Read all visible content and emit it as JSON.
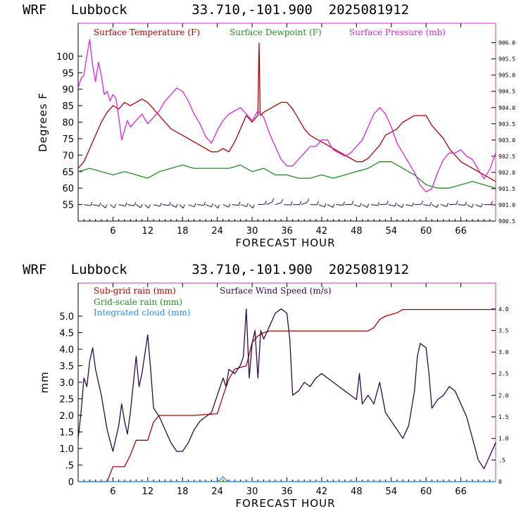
{
  "header_top": {
    "model": "WRF",
    "station": "Lubbock",
    "coords": "33.710,-101.900",
    "run": "2025081912"
  },
  "header_bottom": {
    "model": "WRF",
    "station": "Lubbock",
    "coords": "33.710,-101.900",
    "run": "2025081912"
  },
  "colors": {
    "temperature": "#b00000",
    "dewpoint": "#228b22",
    "pressure": "#e020e0",
    "subgrid_rain": "#b00000",
    "gridscale_rain": "#228b22",
    "cloud": "#1e90ff",
    "wind": "#2a0a4a",
    "frame": "#cc33cc"
  },
  "chart_data": [
    {
      "type": "line",
      "xlabel": "FORECAST HOUR",
      "ylabel": "Degrees F",
      "xlim": [
        0,
        72
      ],
      "ylim": [
        50,
        110
      ],
      "y2lim": [
        900.5,
        906.6
      ],
      "xticks": [
        "6",
        "12",
        "18",
        "24",
        "30",
        "36",
        "42",
        "48",
        "54",
        "60",
        "66"
      ],
      "yticks": [
        "55",
        "60",
        "65",
        "70",
        "75",
        "80",
        "85",
        "90",
        "95",
        "100"
      ],
      "y2ticks": [
        "900.5",
        "901.0",
        "901.5",
        "902.0",
        "902.5",
        "903.0",
        "903.5",
        "904.0",
        "904.5",
        "905.0",
        "905.5",
        "906.0"
      ],
      "legend": [
        "Surface Temperature (F)",
        "Surface Dewpoint (F)",
        "Surface Pressure (mb)"
      ],
      "series": [
        {
          "name": "Surface Temperature (F)",
          "axis": "left",
          "x": [
            0,
            1,
            2,
            3,
            4,
            5,
            6,
            7,
            8,
            9,
            10,
            11,
            12,
            13,
            14,
            15,
            16,
            17,
            18,
            19,
            20,
            21,
            22,
            23,
            24,
            25,
            26,
            27,
            28,
            29,
            30,
            31,
            31.2,
            31.4,
            32,
            33,
            34,
            35,
            36,
            37,
            38,
            39,
            40,
            41,
            42,
            43,
            44,
            45,
            46,
            47,
            48,
            49,
            50,
            51,
            52,
            53,
            54,
            55,
            56,
            57,
            58,
            59,
            60,
            61,
            62,
            63,
            64,
            65,
            66,
            67,
            68,
            69,
            70,
            71,
            72
          ],
          "values": [
            66,
            68,
            72,
            76,
            80,
            83,
            85,
            84,
            86,
            85,
            86,
            87,
            86,
            84,
            82,
            80,
            78,
            77,
            76,
            75,
            74,
            73,
            72,
            71,
            71,
            72,
            71,
            74,
            78,
            82,
            80,
            82,
            104,
            82,
            83,
            84,
            85,
            86,
            86,
            84,
            81,
            78,
            76,
            75,
            74,
            73,
            72,
            71,
            70,
            69,
            68,
            68,
            69,
            71,
            73,
            76,
            77,
            78,
            80,
            81,
            82,
            82,
            82,
            79,
            77,
            75,
            72,
            70,
            68,
            67,
            66,
            65,
            64,
            63,
            62
          ]
        },
        {
          "name": "Surface Dewpoint (F)",
          "axis": "left",
          "x": [
            0,
            2,
            4,
            6,
            8,
            10,
            12,
            14,
            16,
            18,
            20,
            22,
            24,
            26,
            28,
            30,
            32,
            34,
            36,
            38,
            40,
            42,
            44,
            46,
            48,
            50,
            52,
            54,
            56,
            58,
            60,
            62,
            64,
            66,
            68,
            70,
            72
          ],
          "values": [
            65,
            66,
            65,
            64,
            65,
            64,
            63,
            65,
            66,
            67,
            66,
            66,
            66,
            66,
            67,
            65,
            66,
            64,
            64,
            63,
            63,
            64,
            63,
            64,
            65,
            66,
            68,
            68,
            66,
            64,
            61,
            60,
            60,
            61,
            62,
            61,
            60
          ]
        },
        {
          "name": "Surface Pressure (mb)",
          "axis": "right",
          "x": [
            0,
            0.5,
            1,
            1.5,
            2,
            2.5,
            3,
            3.5,
            4,
            4.5,
            5,
            5.5,
            6,
            6.5,
            7,
            7.5,
            8,
            8.5,
            9,
            10,
            11,
            12,
            13,
            14,
            15,
            16,
            17,
            18,
            19,
            20,
            21,
            22,
            23,
            24,
            25,
            26,
            27,
            28,
            29,
            30,
            31,
            32,
            33,
            34,
            35,
            36,
            37,
            38,
            39,
            40,
            41,
            42,
            43,
            44,
            45,
            46,
            47,
            48,
            49,
            50,
            51,
            52,
            53,
            54,
            55,
            56,
            57,
            58,
            59,
            60,
            61,
            62,
            63,
            64,
            65,
            66,
            67,
            68,
            69,
            70,
            71,
            72
          ],
          "values": [
            904.6,
            904.9,
            905.0,
            905.6,
            906.1,
            905.3,
            904.8,
            905.4,
            905.0,
            904.4,
            904.5,
            904.2,
            904.4,
            904.3,
            903.7,
            903.0,
            903.3,
            903.6,
            903.4,
            903.6,
            903.8,
            903.5,
            903.7,
            903.9,
            904.2,
            904.4,
            904.6,
            904.5,
            904.2,
            903.8,
            903.5,
            903.1,
            902.9,
            903.3,
            903.6,
            903.8,
            903.9,
            904.0,
            903.8,
            903.6,
            903.9,
            903.7,
            903.2,
            902.8,
            902.4,
            902.2,
            902.2,
            902.4,
            902.6,
            902.8,
            902.8,
            903.0,
            903.0,
            902.7,
            902.6,
            902.5,
            902.6,
            902.8,
            903.0,
            903.4,
            903.8,
            904.0,
            903.8,
            903.4,
            902.9,
            902.6,
            902.3,
            902.0,
            901.6,
            901.4,
            901.5,
            902.0,
            902.4,
            902.6,
            902.6,
            902.7,
            902.5,
            902.4,
            902.1,
            901.8,
            902.1,
            902.6
          ]
        }
      ]
    },
    {
      "type": "line",
      "xlabel": "FORECAST HOUR",
      "ylabel": "mm",
      "xlim": [
        0,
        72
      ],
      "ylim": [
        0,
        6.0
      ],
      "y2lim": [
        0,
        4.6
      ],
      "xticks": [
        "6",
        "12",
        "18",
        "24",
        "30",
        "36",
        "42",
        "48",
        "54",
        "60",
        "66"
      ],
      "yticks": [
        "0",
        ".5",
        "1.0",
        "1.5",
        "2.0",
        "2.5",
        "3.0",
        "3.5",
        "4.0",
        "4.5",
        "5.0"
      ],
      "y2ticks": [
        "0",
        ".5",
        "1.0",
        "1.5",
        "2.0",
        "2.5",
        "3.0",
        "3.5",
        "4.0"
      ],
      "legend": [
        "Sub-grid rain (mm)",
        "Grid-scale rain (mm)",
        "Integrated cloud (mm)",
        "Surface Wind Speed (m/s)"
      ],
      "series": [
        {
          "name": "Sub-grid rain (mm)",
          "axis": "left",
          "x": [
            0,
            5,
            6,
            8,
            9,
            10,
            11,
            12,
            13,
            14,
            15,
            16,
            20,
            24,
            25,
            26,
            27,
            28,
            29,
            30,
            31,
            32,
            33,
            34,
            40,
            50,
            51,
            52,
            53,
            54,
            55,
            56,
            57,
            60,
            72
          ],
          "values": [
            0,
            0,
            0.45,
            0.45,
            0.8,
            1.25,
            1.25,
            1.25,
            1.8,
            2.0,
            2.0,
            2.0,
            2.0,
            2.05,
            2.6,
            3.1,
            3.4,
            3.45,
            3.5,
            4.2,
            4.4,
            4.5,
            4.55,
            4.55,
            4.55,
            4.55,
            4.65,
            4.9,
            5.0,
            5.05,
            5.1,
            5.2,
            5.2,
            5.2,
            5.2
          ]
        },
        {
          "name": "Grid-scale rain (mm)",
          "axis": "left",
          "x": [
            0,
            72
          ],
          "values": [
            0,
            0
          ]
        },
        {
          "name": "Integrated cloud (mm)",
          "axis": "left",
          "x": [
            0,
            24,
            24.5,
            25,
            25.5,
            26,
            72
          ],
          "values": [
            0,
            0,
            0.05,
            0.15,
            0.05,
            0,
            0
          ]
        },
        {
          "name": "Surface Wind Speed (m/s)",
          "axis": "right",
          "x": [
            0,
            0.5,
            1,
            1.5,
            2,
            2.5,
            3,
            4,
            5,
            6,
            7,
            7.5,
            8,
            8.5,
            9,
            10,
            10.5,
            11,
            12,
            12.5,
            13,
            14,
            15,
            16,
            17,
            18,
            19,
            20,
            21,
            22,
            23,
            24,
            24.5,
            25,
            25.5,
            26,
            27,
            28,
            28.5,
            29,
            29.5,
            30,
            30.5,
            31,
            31.5,
            32,
            33,
            34,
            35,
            36,
            36.5,
            37,
            38,
            39,
            40,
            41,
            42,
            43,
            44,
            45,
            46,
            47,
            48,
            48.5,
            49,
            50,
            51,
            52,
            53,
            54,
            55,
            56,
            57,
            58,
            58.5,
            59,
            60,
            60.5,
            61,
            62,
            63,
            64,
            65,
            66,
            67,
            68,
            69,
            70,
            71,
            72
          ],
          "values": [
            1.0,
            1.6,
            2.4,
            2.2,
            2.8,
            3.1,
            2.6,
            2.0,
            1.2,
            0.7,
            1.3,
            1.8,
            1.4,
            1.1,
            1.6,
            2.9,
            2.2,
            2.5,
            3.4,
            2.6,
            1.7,
            1.5,
            1.2,
            0.9,
            0.7,
            0.7,
            0.9,
            1.2,
            1.4,
            1.5,
            1.6,
            2.0,
            2.2,
            2.4,
            2.2,
            2.6,
            2.5,
            2.7,
            2.9,
            4.0,
            2.4,
            3.2,
            3.5,
            2.4,
            3.5,
            3.3,
            3.6,
            3.9,
            4.0,
            3.9,
            3.3,
            2.0,
            2.1,
            2.3,
            2.2,
            2.4,
            2.5,
            2.4,
            2.3,
            2.2,
            2.1,
            2.0,
            1.9,
            2.5,
            1.8,
            2.0,
            1.8,
            2.3,
            1.6,
            1.4,
            1.2,
            1.0,
            1.3,
            2.1,
            2.9,
            3.2,
            3.1,
            2.5,
            1.7,
            1.9,
            2.0,
            2.2,
            2.1,
            1.8,
            1.5,
            1.0,
            0.5,
            0.3,
            0.6,
            0.9
          ]
        }
      ]
    }
  ]
}
